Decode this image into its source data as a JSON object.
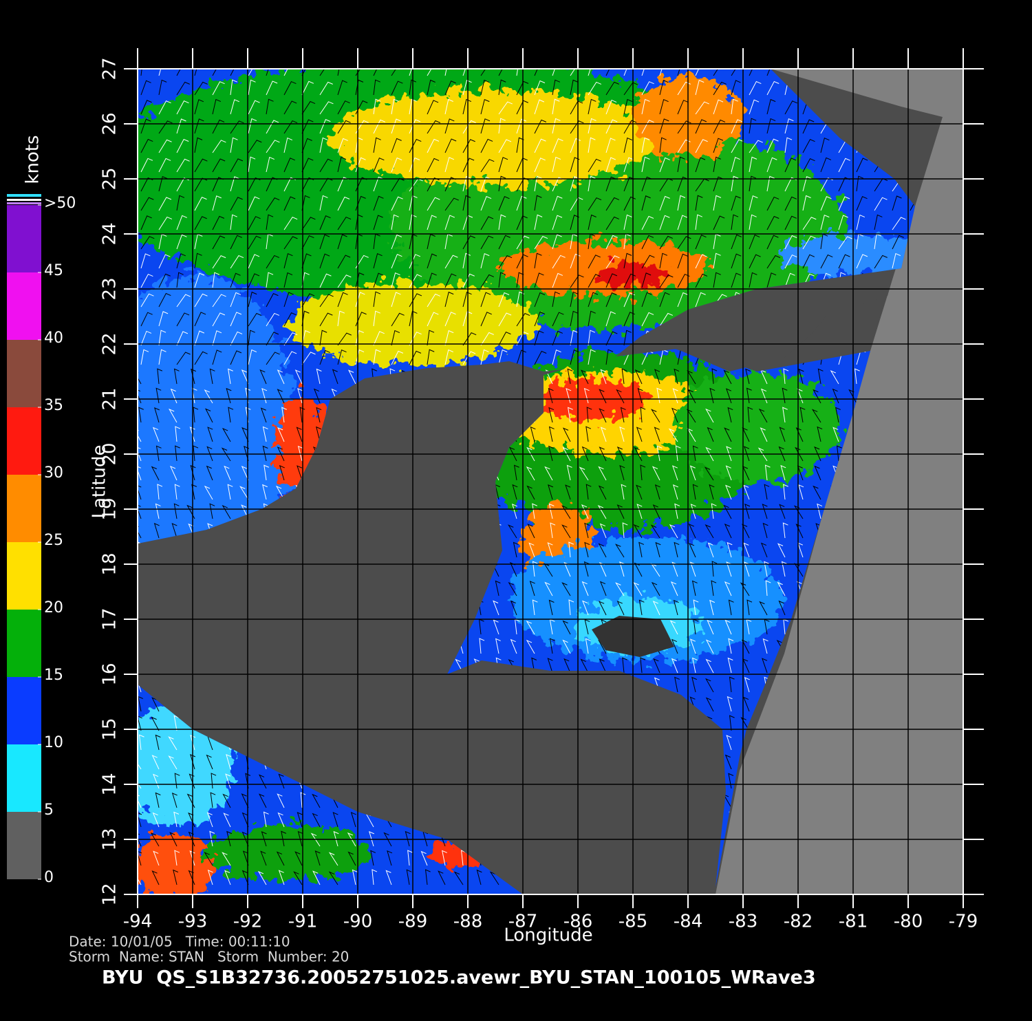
{
  "map": {
    "xlabel": "Longitude",
    "ylabel": "Latitude",
    "xlim": [
      -94,
      -79
    ],
    "ylim": [
      12,
      27
    ],
    "xticks": [
      -94,
      -93,
      -92,
      -91,
      -90,
      -89,
      -88,
      -87,
      -86,
      -85,
      -84,
      -83,
      -82,
      -81,
      -80,
      -79
    ],
    "yticks": [
      12,
      13,
      14,
      15,
      16,
      17,
      18,
      19,
      20,
      21,
      22,
      23,
      24,
      25,
      26,
      27
    ]
  },
  "colorbar": {
    "title": "knots",
    "lim": [
      0,
      50
    ],
    "ticks": [
      0,
      5,
      10,
      15,
      20,
      25,
      30,
      35,
      40,
      45,
      {
        "value": 50,
        "label": ">50"
      }
    ],
    "colors": [
      "#606060",
      "#18e8ff",
      "#0a3cff",
      "#04b00a",
      "#ffe000",
      "#ff8c00",
      "#ff1a10",
      "#8a4a3c",
      "#f010f0",
      "#8010d0"
    ]
  },
  "footer": {
    "line1": "Date: 10/01/05   Time: 00:11:10",
    "line2": "Storm  Name: STAN   Storm  Number: 20",
    "title": "BYU  QS_S1B32736.20052751025.avewr_BYU_STAN_100105_WRave3"
  }
}
